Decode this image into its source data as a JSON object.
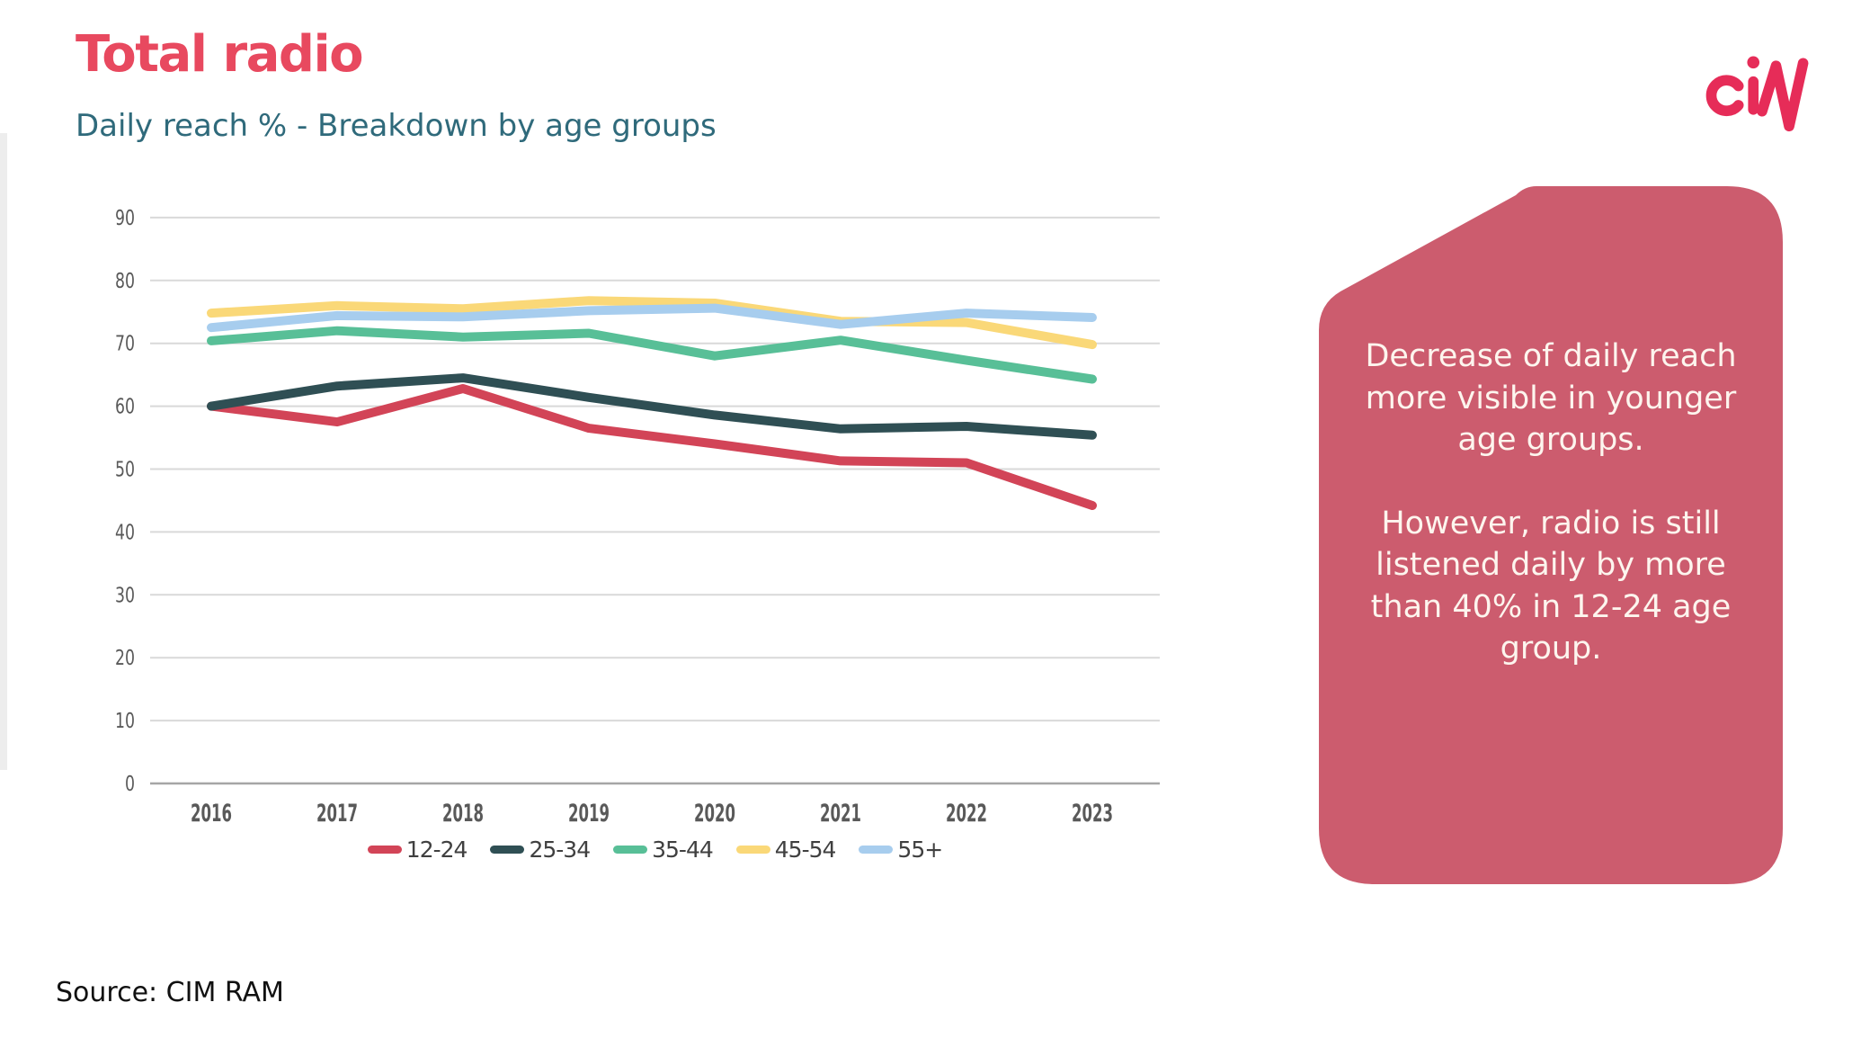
{
  "slide": {
    "title": "Total radio",
    "subtitle": "Daily reach % - Breakdown by age groups",
    "source": "Source: CIM RAM",
    "logo": "ciM"
  },
  "callout": {
    "para1": "Decrease of daily reach more visible in younger age groups.",
    "para2": "However, radio is still listened daily by more than 40% in 12-24 age group.",
    "bg_color": "#cc5c6e",
    "text_color": "#fdf5ee"
  },
  "colors": {
    "accent": "#e8495f",
    "subtitle": "#2f6a7b",
    "logo": "#e62c58",
    "gridline": "#d9d9d9",
    "axis_line": "#a6a6a6",
    "tick_text": "#595959"
  },
  "chart_data": {
    "type": "line",
    "title": "Daily reach % - Breakdown by age groups",
    "xlabel": "",
    "ylabel": "",
    "x_tick_labels": [
      "2016",
      "2017",
      "2018",
      "2019",
      "2020",
      "2021",
      "2022",
      "2023"
    ],
    "y_tick_labels": [
      "0",
      "10",
      "20",
      "30",
      "40",
      "50",
      "60",
      "70",
      "80",
      "90"
    ],
    "ylim": [
      0,
      90
    ],
    "ytick_step": 10,
    "grid": true,
    "legend_position": "bottom",
    "series": [
      {
        "name": "12-24",
        "color": "#d24457",
        "values": [
          60.0,
          57.5,
          62.8,
          56.5,
          54.0,
          51.3,
          51.0,
          44.2
        ]
      },
      {
        "name": "25-34",
        "color": "#2f4f54",
        "values": [
          60.0,
          63.2,
          64.5,
          61.4,
          58.6,
          56.4,
          56.8,
          55.4
        ]
      },
      {
        "name": "35-44",
        "color": "#58bf97",
        "values": [
          70.4,
          72.0,
          71.0,
          71.6,
          68.0,
          70.5,
          67.3,
          64.3
        ]
      },
      {
        "name": "45-54",
        "color": "#fad878",
        "values": [
          74.8,
          76.0,
          75.5,
          76.8,
          76.4,
          73.5,
          73.3,
          69.8
        ]
      },
      {
        "name": "55+",
        "color": "#a7cdee",
        "values": [
          72.5,
          74.4,
          74.2,
          75.2,
          75.6,
          73.0,
          74.8,
          74.1
        ]
      }
    ]
  }
}
